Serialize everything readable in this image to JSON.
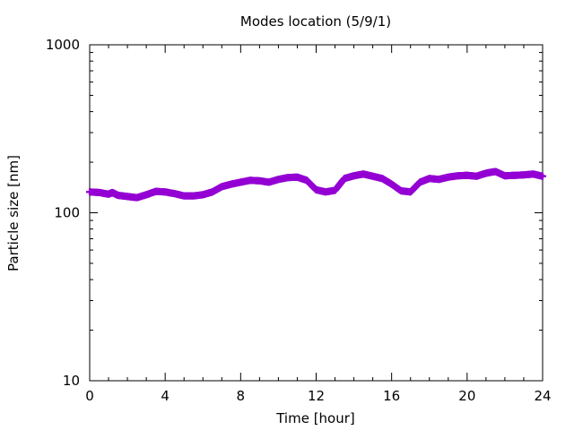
{
  "chart_data": {
    "type": "scatter",
    "title": "Modes location (5/9/1)",
    "xlabel": "Time [hour]",
    "ylabel": "Particle size [nm]",
    "xlim": [
      0,
      24
    ],
    "ylim": [
      10,
      1000
    ],
    "yscale": "log",
    "grid": false,
    "legend": "none",
    "x_ticks": [
      "0",
      "4",
      "8",
      "12",
      "16",
      "20",
      "24"
    ],
    "y_ticks": [
      "10",
      "100",
      "1000"
    ],
    "series": [
      {
        "color": "#9400d3",
        "marker": "plus",
        "x": [
          0.0,
          0.5,
          1.0,
          1.2,
          1.5,
          2.0,
          2.5,
          3.0,
          3.5,
          4.0,
          4.5,
          5.0,
          5.5,
          6.0,
          6.5,
          7.0,
          7.5,
          8.0,
          8.5,
          9.0,
          9.5,
          10.0,
          10.5,
          11.0,
          11.5,
          12.0,
          12.5,
          13.0,
          13.5,
          14.0,
          14.5,
          15.0,
          15.5,
          16.0,
          16.5,
          17.0,
          17.5,
          18.0,
          18.5,
          19.0,
          19.5,
          20.0,
          20.5,
          21.0,
          21.5,
          22.0,
          22.5,
          23.0,
          23.5,
          24.0
        ],
        "y": [
          133,
          132,
          129,
          132,
          127,
          125,
          123,
          128,
          134,
          133,
          130,
          126,
          126,
          128,
          133,
          143,
          148,
          152,
          156,
          155,
          152,
          158,
          162,
          163,
          156,
          137,
          133,
          136,
          160,
          166,
          170,
          165,
          160,
          148,
          135,
          133,
          152,
          160,
          158,
          163,
          166,
          167,
          165,
          172,
          176,
          166,
          167,
          168,
          170,
          165
        ]
      }
    ]
  }
}
